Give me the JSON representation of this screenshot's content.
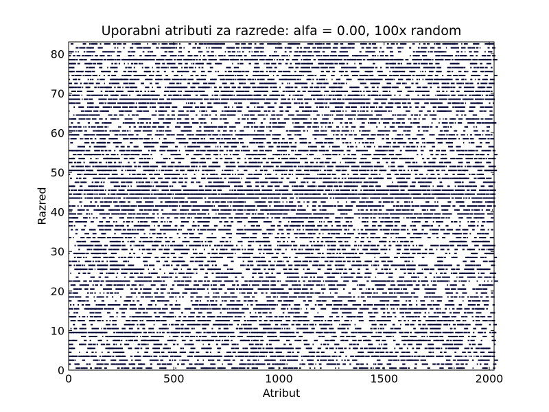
{
  "chart_data": {
    "type": "heatmap",
    "title": "Uporabni atributi za razrede: alfa = 0.00, 100x random",
    "xlabel": "Atribut",
    "ylabel": "Razred",
    "xlim": [
      0,
      2023
    ],
    "ylim": [
      0,
      83
    ],
    "x_ticks": [
      0,
      500,
      1000,
      1500,
      2000
    ],
    "y_ticks": [
      0,
      10,
      20,
      30,
      40,
      50,
      60,
      70,
      80
    ],
    "n_classes": 83,
    "n_attributes": 2023,
    "grid": false,
    "mark_color": "#000033",
    "row_density": [
      0.45,
      0.5,
      0.4,
      0.85,
      0.45,
      0.5,
      0.42,
      0.55,
      0.48,
      0.7,
      0.4,
      0.45,
      0.5,
      0.55,
      0.45,
      0.6,
      0.5,
      0.4,
      0.55,
      0.45,
      0.5,
      0.4,
      0.6,
      0.45,
      0.5,
      0.45,
      0.55,
      0.4,
      0.5,
      0.45,
      0.5,
      0.65,
      0.4,
      0.5,
      0.45,
      0.55,
      0.45,
      0.5,
      0.6,
      0.7,
      0.55,
      0.75,
      0.5,
      0.9,
      0.95,
      0.8,
      0.55,
      0.5,
      0.6,
      0.5,
      0.55,
      0.75,
      0.5,
      0.55,
      0.45,
      0.6,
      0.5,
      0.45,
      0.5,
      0.55,
      0.45,
      0.5,
      0.45,
      0.55,
      0.5,
      0.45,
      0.5,
      0.55,
      0.9,
      0.6,
      0.5,
      0.55,
      0.5,
      0.6,
      0.5,
      0.55,
      0.5,
      0.45,
      0.85,
      0.5,
      0.45,
      0.55,
      0.5
    ]
  }
}
